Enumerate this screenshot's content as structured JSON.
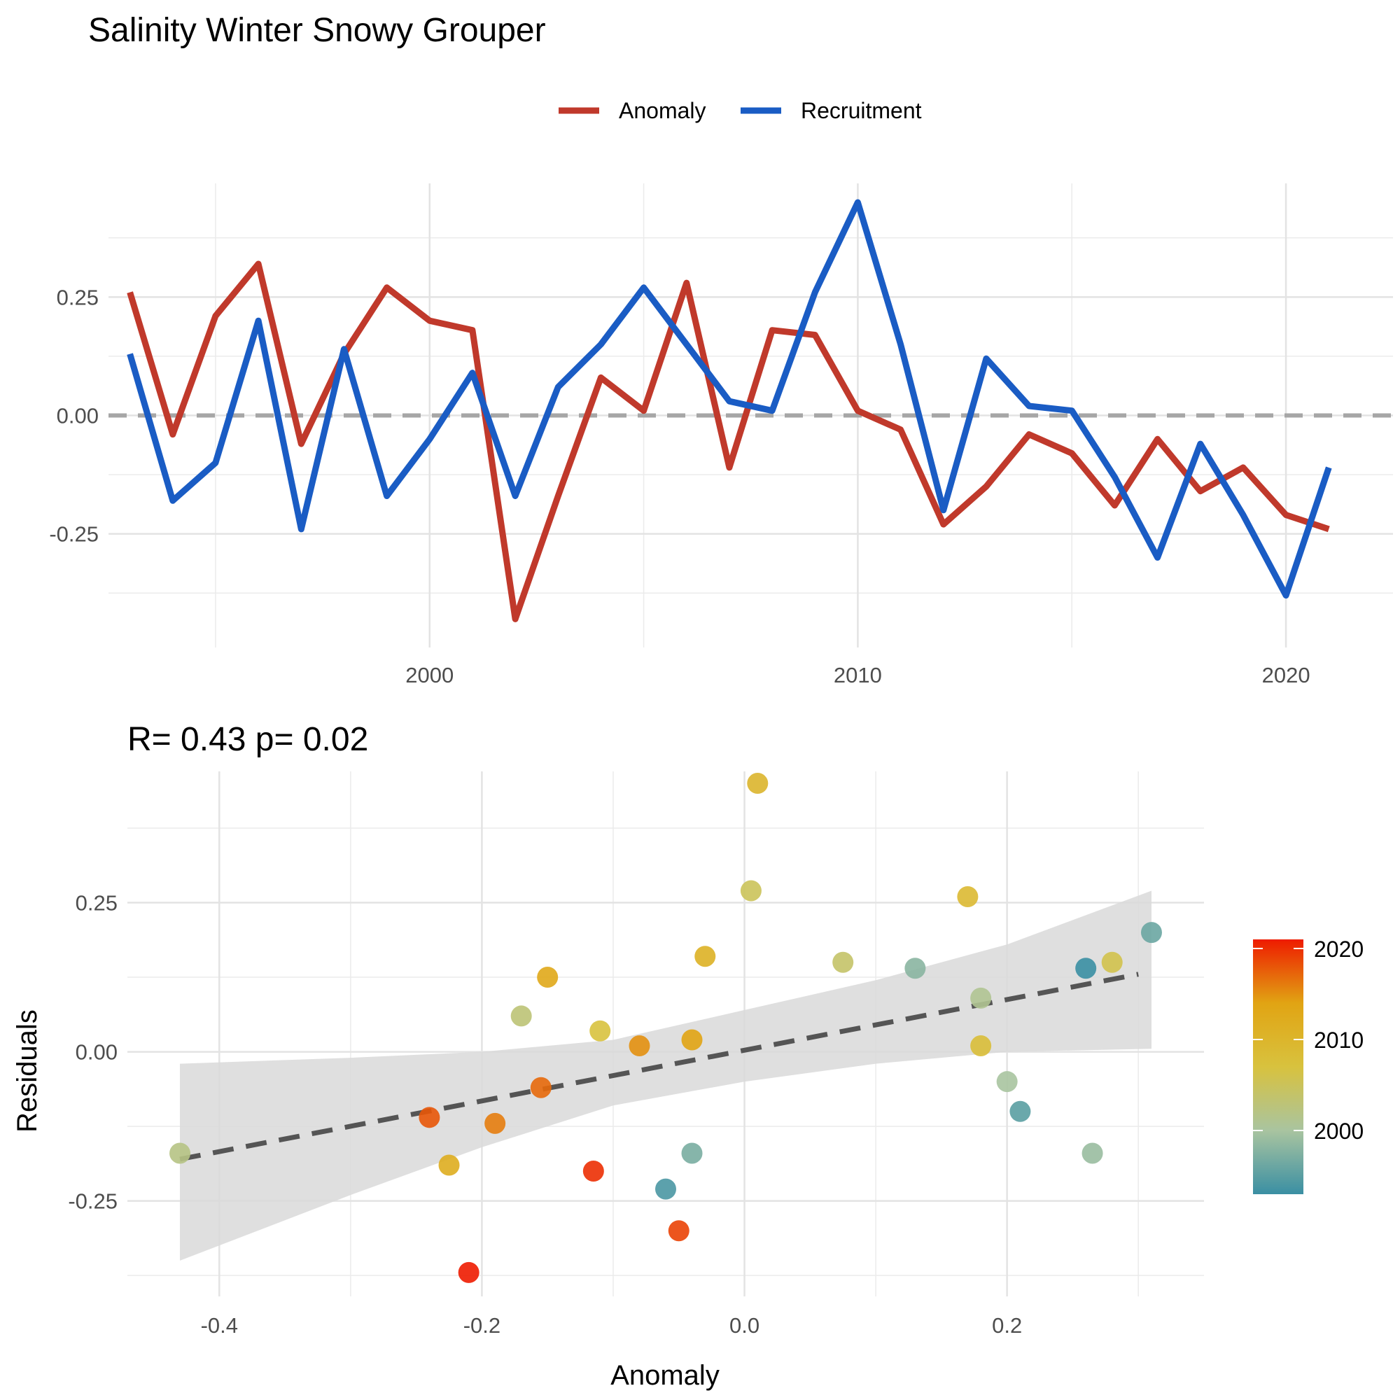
{
  "title": "Salinity Winter Snowy Grouper",
  "chart_data": [
    {
      "type": "line",
      "title": "",
      "xlabel": "",
      "ylabel": "",
      "xlim": [
        1992.5,
        2022.5
      ],
      "ylim": [
        -0.49,
        0.49
      ],
      "x_ticks": [
        {
          "value": 2000,
          "label": "2000"
        },
        {
          "value": 2010,
          "label": "2010"
        },
        {
          "value": 2020,
          "label": "2020"
        }
      ],
      "y_ticks": [
        {
          "value": 0.25,
          "label": "0.25"
        },
        {
          "value": 0.0,
          "label": "0.00"
        },
        {
          "value": -0.25,
          "label": "-0.25"
        }
      ],
      "reference_line": 0,
      "grid": true,
      "legend_position": "top",
      "x": [
        1993,
        1994,
        1995,
        1996,
        1997,
        1998,
        1999,
        2000,
        2001,
        2002,
        2003,
        2004,
        2005,
        2006,
        2007,
        2008,
        2009,
        2010,
        2011,
        2012,
        2013,
        2014,
        2015,
        2016,
        2017,
        2018,
        2019,
        2020,
        2021
      ],
      "series": [
        {
          "name": "Anomaly",
          "color": "#c0392b",
          "values": [
            0.26,
            -0.04,
            0.21,
            0.32,
            -0.06,
            0.13,
            0.27,
            0.2,
            0.18,
            -0.43,
            -0.17,
            0.08,
            0.01,
            0.28,
            -0.11,
            0.18,
            0.17,
            0.01,
            -0.03,
            -0.23,
            -0.15,
            -0.04,
            -0.08,
            -0.19,
            -0.05,
            -0.16,
            -0.11,
            -0.21,
            -0.24
          ]
        },
        {
          "name": "Recruitment",
          "color": "#1a5cc4",
          "values": [
            0.13,
            -0.18,
            -0.1,
            0.2,
            -0.24,
            0.14,
            -0.17,
            -0.05,
            0.09,
            -0.17,
            0.06,
            0.15,
            0.27,
            0.15,
            0.03,
            0.01,
            0.26,
            0.45,
            0.15,
            -0.2,
            0.12,
            0.02,
            0.01,
            -0.13,
            -0.3,
            -0.06,
            -0.21,
            -0.38,
            -0.11
          ]
        }
      ]
    },
    {
      "type": "scatter",
      "title": "R= 0.43  p= 0.02",
      "xlabel": "Anomaly",
      "ylabel": "Residuals",
      "xlim": [
        -0.47,
        0.35
      ],
      "ylim": [
        -0.41,
        0.47
      ],
      "x_ticks": [
        {
          "value": -0.4,
          "label": "-0.4"
        },
        {
          "value": -0.2,
          "label": "-0.2"
        },
        {
          "value": 0.0,
          "label": "0.0"
        },
        {
          "value": 0.2,
          "label": "0.2"
        }
      ],
      "y_ticks": [
        {
          "value": 0.25,
          "label": "0.25"
        },
        {
          "value": 0.0,
          "label": "0.00"
        },
        {
          "value": -0.25,
          "label": "-0.25"
        }
      ],
      "grid": true,
      "fit": {
        "x": [
          -0.43,
          0.3
        ],
        "y": [
          -0.18,
          0.13
        ],
        "style": "dashed",
        "color": "#555555"
      },
      "confidence_band": {
        "x": [
          -0.43,
          -0.3,
          -0.2,
          -0.1,
          0.0,
          0.1,
          0.2,
          0.31
        ],
        "upper": [
          -0.02,
          -0.01,
          0.0,
          0.02,
          0.07,
          0.12,
          0.18,
          0.27
        ],
        "lower": [
          -0.35,
          -0.24,
          -0.16,
          -0.09,
          -0.05,
          -0.02,
          0.0,
          0.005
        ],
        "color": "#d9d9d9"
      },
      "colorbar": {
        "range": [
          1993,
          2021
        ],
        "ticks": [
          {
            "value": 2000,
            "label": "2000"
          },
          {
            "value": 2010,
            "label": "2010"
          },
          {
            "value": 2020,
            "label": "2020"
          }
        ],
        "colors": [
          "#3a8fa3",
          "#a9c4a0",
          "#d8c23e",
          "#e1a413",
          "#ee1b00"
        ],
        "position": "right"
      },
      "points": [
        {
          "x": 0.26,
          "y": 0.14,
          "year": 1993
        },
        {
          "x": -0.06,
          "y": -0.23,
          "year": 1994
        },
        {
          "x": 0.21,
          "y": -0.1,
          "year": 1995
        },
        {
          "x": 0.31,
          "y": 0.2,
          "year": 1996
        },
        {
          "x": -0.04,
          "y": -0.17,
          "year": 1997
        },
        {
          "x": 0.13,
          "y": 0.14,
          "year": 1998
        },
        {
          "x": 0.265,
          "y": -0.17,
          "year": 1999
        },
        {
          "x": 0.2,
          "y": -0.05,
          "year": 2000
        },
        {
          "x": 0.18,
          "y": 0.09,
          "year": 2001
        },
        {
          "x": -0.43,
          "y": -0.17,
          "year": 2002
        },
        {
          "x": -0.17,
          "y": 0.06,
          "year": 2003
        },
        {
          "x": 0.075,
          "y": 0.15,
          "year": 2004
        },
        {
          "x": 0.005,
          "y": 0.27,
          "year": 2005
        },
        {
          "x": 0.28,
          "y": 0.15,
          "year": 2006
        },
        {
          "x": -0.11,
          "y": 0.035,
          "year": 2007
        },
        {
          "x": 0.18,
          "y": 0.01,
          "year": 2008
        },
        {
          "x": 0.17,
          "y": 0.26,
          "year": 2009
        },
        {
          "x": 0.01,
          "y": 0.45,
          "year": 2010
        },
        {
          "x": -0.03,
          "y": 0.16,
          "year": 2011
        },
        {
          "x": -0.225,
          "y": -0.19,
          "year": 2012
        },
        {
          "x": -0.15,
          "y": 0.125,
          "year": 2013
        },
        {
          "x": -0.04,
          "y": 0.02,
          "year": 2014
        },
        {
          "x": -0.08,
          "y": 0.01,
          "year": 2015
        },
        {
          "x": -0.19,
          "y": -0.12,
          "year": 2016
        },
        {
          "x": -0.155,
          "y": -0.06,
          "year": 2017
        },
        {
          "x": -0.24,
          "y": -0.11,
          "year": 2018
        },
        {
          "x": -0.05,
          "y": -0.3,
          "year": 2019
        },
        {
          "x": -0.115,
          "y": -0.2,
          "year": 2020
        },
        {
          "x": -0.21,
          "y": -0.37,
          "year": 2021
        }
      ]
    }
  ]
}
